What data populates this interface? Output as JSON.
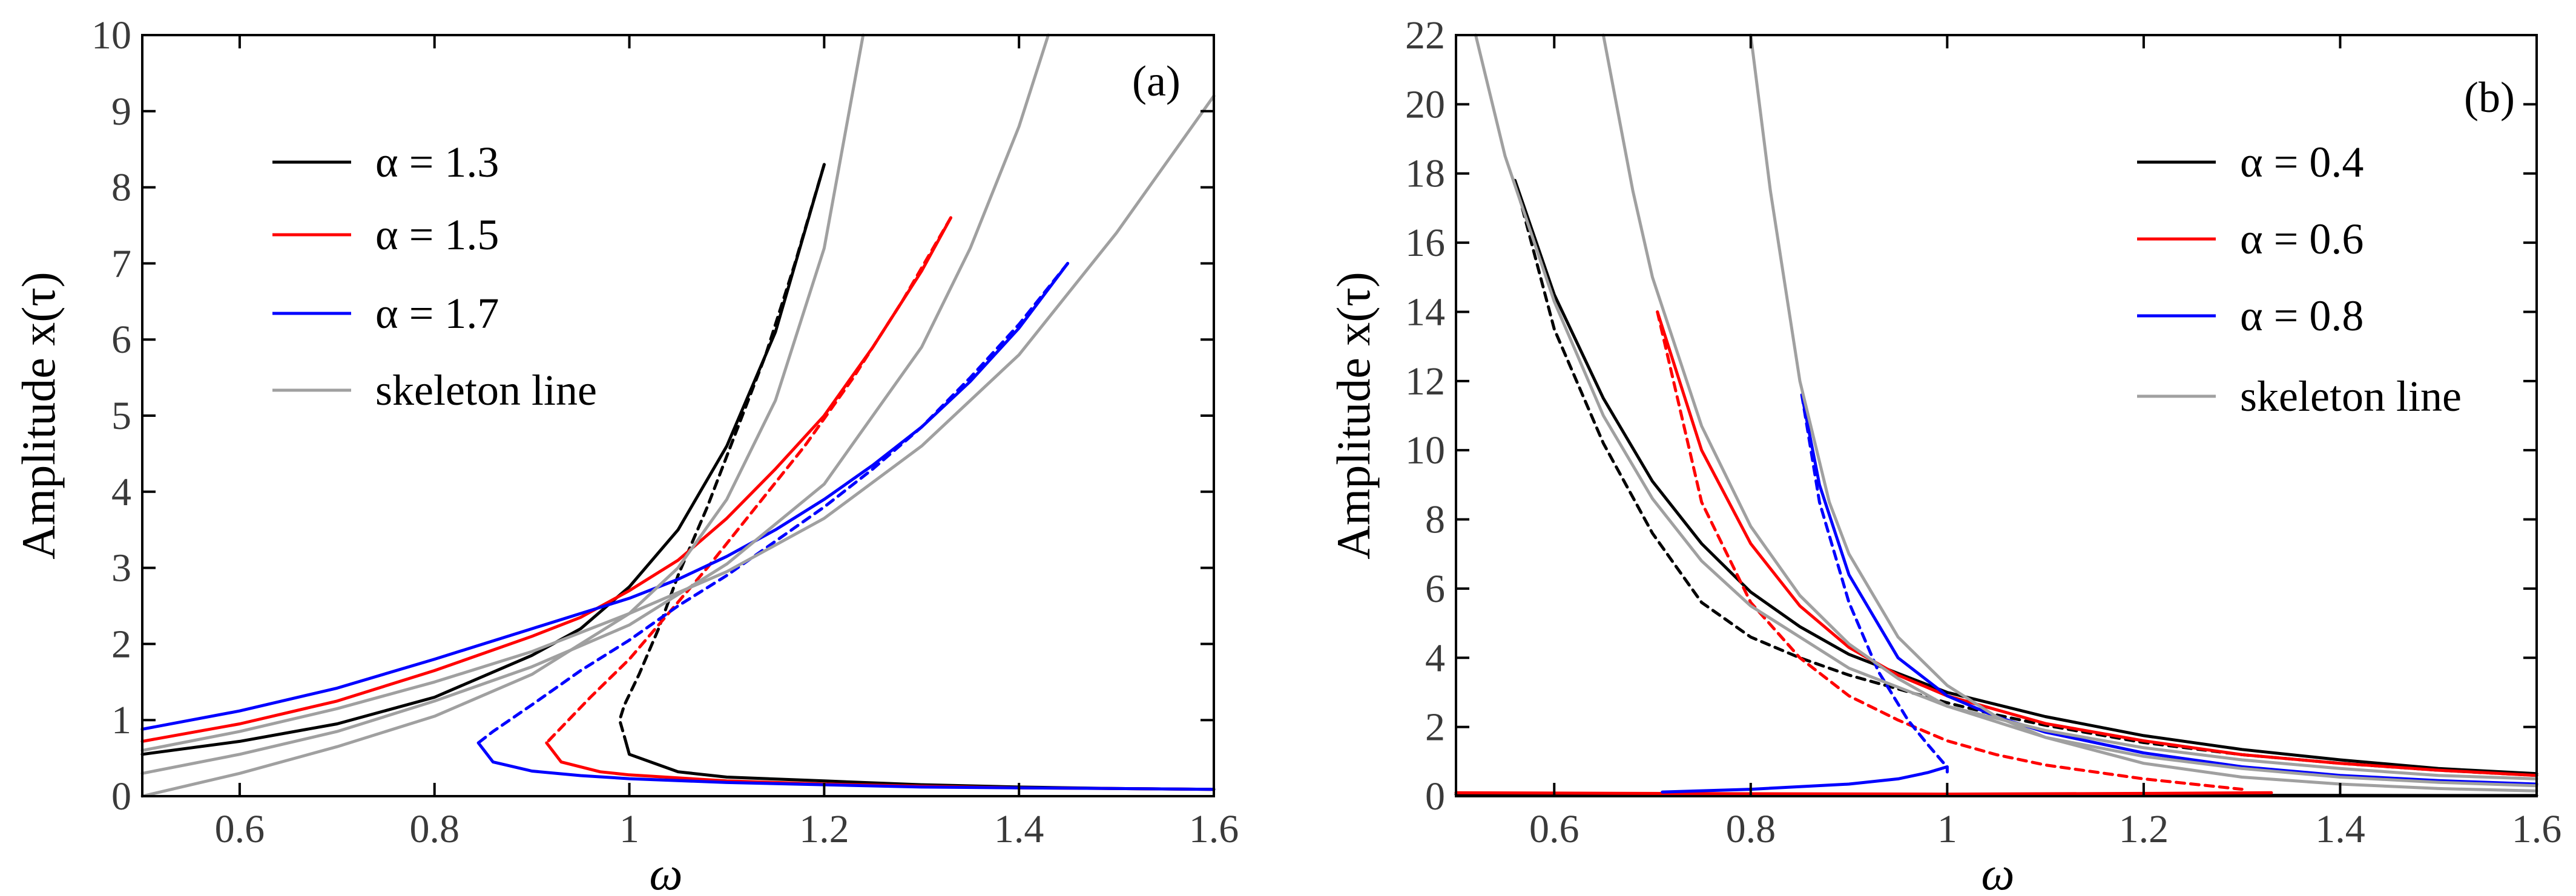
{
  "chart_data": [
    {
      "type": "line",
      "panel": "(a)",
      "xlabel": "ω",
      "ylabel": "Amplitude x(τ)",
      "xlim": [
        0.5,
        1.6
      ],
      "ylim": [
        0,
        10
      ],
      "xticks": [
        "0.6",
        "0.8",
        "1",
        "1.2",
        "1.4",
        "1.6"
      ],
      "yticks": [
        "0",
        "1",
        "2",
        "3",
        "4",
        "5",
        "6",
        "7",
        "8",
        "9",
        "10"
      ],
      "legend": [
        {
          "label": "α = 1.3",
          "color": "#000000"
        },
        {
          "label": "α = 1.5",
          "color": "#ff0000"
        },
        {
          "label": "α = 1.7",
          "color": "#0000ff"
        },
        {
          "label": "skeleton line",
          "color": "#a0a0a0"
        }
      ],
      "series": [
        {
          "name": "α = 1.3 stable upper",
          "color": "#000000",
          "style": "solid",
          "x": [
            0.5,
            0.6,
            0.7,
            0.8,
            0.9,
            0.95,
            1.0,
            1.05,
            1.1,
            1.15,
            1.2
          ],
          "y": [
            0.55,
            0.72,
            0.95,
            1.3,
            1.85,
            2.2,
            2.75,
            3.5,
            4.6,
            6.1,
            8.3
          ]
        },
        {
          "name": "α = 1.3 unstable",
          "color": "#000000",
          "style": "dashed",
          "x": [
            1.2,
            1.17,
            1.14,
            1.11,
            1.08,
            1.05,
            1.03,
            1.01,
            0.995,
            0.99,
            0.995
          ],
          "y": [
            8.3,
            7.0,
            5.8,
            4.8,
            3.8,
            2.9,
            2.2,
            1.6,
            1.2,
            1.0,
            0.78
          ]
        },
        {
          "name": "α = 1.3 stable lower",
          "color": "#000000",
          "style": "solid",
          "x": [
            0.995,
            1.0,
            1.05,
            1.1,
            1.2,
            1.3,
            1.4,
            1.5,
            1.6
          ],
          "y": [
            0.78,
            0.55,
            0.32,
            0.25,
            0.2,
            0.15,
            0.12,
            0.1,
            0.09
          ]
        },
        {
          "name": "α = 1.5 stable upper",
          "color": "#ff0000",
          "style": "solid",
          "x": [
            0.5,
            0.6,
            0.7,
            0.8,
            0.9,
            0.95,
            1.0,
            1.05,
            1.1,
            1.15,
            1.2,
            1.25,
            1.3,
            1.33
          ],
          "y": [
            0.72,
            0.95,
            1.25,
            1.65,
            2.1,
            2.35,
            2.7,
            3.1,
            3.65,
            4.3,
            5.0,
            5.9,
            6.9,
            7.6
          ]
        },
        {
          "name": "α = 1.5 unstable",
          "color": "#ff0000",
          "style": "dashed",
          "x": [
            1.33,
            1.28,
            1.23,
            1.18,
            1.13,
            1.08,
            1.04,
            1.0,
            0.96,
            0.93,
            0.915
          ],
          "y": [
            7.6,
            6.5,
            5.5,
            4.6,
            3.8,
            3.0,
            2.4,
            1.8,
            1.3,
            0.9,
            0.7
          ]
        },
        {
          "name": "α = 1.5 stable lower",
          "color": "#ff0000",
          "style": "solid",
          "x": [
            0.915,
            0.93,
            0.97,
            1.0,
            1.1,
            1.2,
            1.3,
            1.4,
            1.5,
            1.6
          ],
          "y": [
            0.7,
            0.45,
            0.32,
            0.28,
            0.2,
            0.16,
            0.13,
            0.11,
            0.1,
            0.09
          ]
        },
        {
          "name": "α = 1.7 stable upper",
          "color": "#0000ff",
          "style": "solid",
          "x": [
            0.5,
            0.6,
            0.7,
            0.8,
            0.9,
            1.0,
            1.05,
            1.1,
            1.15,
            1.2,
            1.25,
            1.3,
            1.35,
            1.4,
            1.45
          ],
          "y": [
            0.88,
            1.12,
            1.42,
            1.8,
            2.2,
            2.6,
            2.85,
            3.15,
            3.5,
            3.9,
            4.35,
            4.85,
            5.45,
            6.15,
            7.0
          ]
        },
        {
          "name": "α = 1.7 unstable",
          "color": "#0000ff",
          "style": "dashed",
          "x": [
            1.45,
            1.4,
            1.35,
            1.3,
            1.25,
            1.2,
            1.15,
            1.1,
            1.05,
            1.0,
            0.95,
            0.9,
            0.86,
            0.845
          ],
          "y": [
            7.0,
            6.2,
            5.5,
            4.85,
            4.3,
            3.8,
            3.35,
            2.9,
            2.5,
            2.05,
            1.65,
            1.2,
            0.85,
            0.7
          ]
        },
        {
          "name": "α = 1.7 stable lower",
          "color": "#0000ff",
          "style": "solid",
          "x": [
            0.845,
            0.86,
            0.9,
            0.95,
            1.0,
            1.1,
            1.2,
            1.3,
            1.4,
            1.5,
            1.6
          ],
          "y": [
            0.7,
            0.45,
            0.33,
            0.27,
            0.23,
            0.18,
            0.15,
            0.12,
            0.11,
            0.1,
            0.09
          ]
        },
        {
          "name": "skeleton α = 1.3",
          "color": "#a0a0a0",
          "style": "solid",
          "x": [
            0.5,
            0.6,
            0.7,
            0.8,
            0.9,
            1.0,
            1.05,
            1.1,
            1.15,
            1.2,
            1.24
          ],
          "y": [
            0.0,
            0.3,
            0.65,
            1.05,
            1.6,
            2.4,
            3.0,
            3.9,
            5.2,
            7.2,
            10.0
          ]
        },
        {
          "name": "skeleton α = 1.5",
          "color": "#a0a0a0",
          "style": "solid",
          "x": [
            0.5,
            0.6,
            0.7,
            0.8,
            0.9,
            1.0,
            1.1,
            1.2,
            1.3,
            1.35,
            1.4,
            1.43
          ],
          "y": [
            0.3,
            0.55,
            0.85,
            1.25,
            1.7,
            2.25,
            3.05,
            4.1,
            5.9,
            7.2,
            8.8,
            10.0
          ]
        },
        {
          "name": "skeleton α = 1.7",
          "color": "#a0a0a0",
          "style": "solid",
          "x": [
            0.5,
            0.6,
            0.7,
            0.8,
            0.9,
            1.0,
            1.1,
            1.2,
            1.3,
            1.4,
            1.5,
            1.6
          ],
          "y": [
            0.6,
            0.85,
            1.15,
            1.5,
            1.9,
            2.4,
            2.95,
            3.65,
            4.6,
            5.8,
            7.4,
            9.2
          ]
        }
      ]
    },
    {
      "type": "line",
      "panel": "(b)",
      "xlabel": "ω",
      "ylabel": "Amplitude x(τ)",
      "xlim": [
        0.5,
        1.6
      ],
      "ylim": [
        0,
        22
      ],
      "xticks": [
        "0.6",
        "0.8",
        "1",
        "1.2",
        "1.4",
        "1.6"
      ],
      "yticks": [
        "0",
        "2",
        "4",
        "6",
        "8",
        "10",
        "12",
        "14",
        "16",
        "18",
        "20",
        "22"
      ],
      "legend": [
        {
          "label": "α = 0.4",
          "color": "#000000"
        },
        {
          "label": "α = 0.6",
          "color": "#ff0000"
        },
        {
          "label": "α = 0.8",
          "color": "#0000ff"
        },
        {
          "label": "skeleton line",
          "color": "#a0a0a0"
        }
      ],
      "series": [
        {
          "name": "α = 0.4 stable",
          "color": "#000000",
          "style": "solid",
          "x": [
            0.56,
            0.6,
            0.65,
            0.7,
            0.75,
            0.8,
            0.85,
            0.9,
            1.0,
            1.1,
            1.2,
            1.3,
            1.4,
            1.5,
            1.6
          ],
          "y": [
            17.8,
            14.5,
            11.5,
            9.1,
            7.3,
            5.9,
            4.9,
            4.1,
            3.0,
            2.3,
            1.75,
            1.35,
            1.05,
            0.8,
            0.65
          ]
        },
        {
          "name": "α = 0.4 unstable",
          "color": "#000000",
          "style": "dashed",
          "x": [
            0.56,
            0.6,
            0.65,
            0.7,
            0.75,
            0.8,
            0.85,
            0.9,
            0.95,
            1.0,
            1.05,
            1.1,
            1.2,
            1.3,
            1.4,
            1.5,
            1.6
          ],
          "y": [
            17.8,
            13.5,
            10.2,
            7.6,
            5.6,
            4.6,
            4.0,
            3.5,
            3.1,
            2.7,
            2.35,
            2.05,
            1.55,
            1.2,
            0.95,
            0.75,
            0.6
          ]
        },
        {
          "name": "α = 0.4 lower",
          "color": "#000000",
          "style": "solid",
          "x": [
            0.5,
            1.0,
            1.6
          ],
          "y": [
            0.05,
            0.03,
            0.02
          ]
        },
        {
          "name": "α = 0.6 stable",
          "color": "#ff0000",
          "style": "solid",
          "x": [
            0.705,
            0.75,
            0.8,
            0.85,
            0.9,
            0.95,
            1.0,
            1.1,
            1.2,
            1.3,
            1.4,
            1.5,
            1.6
          ],
          "y": [
            14.0,
            10.0,
            7.3,
            5.5,
            4.3,
            3.5,
            2.9,
            2.1,
            1.6,
            1.2,
            0.95,
            0.75,
            0.6
          ]
        },
        {
          "name": "α = 0.6 unstable",
          "color": "#ff0000",
          "style": "dashed",
          "x": [
            0.705,
            0.75,
            0.8,
            0.85,
            0.9,
            0.95,
            1.0,
            1.05,
            1.1,
            1.2,
            1.3
          ],
          "y": [
            14.0,
            8.5,
            5.6,
            4.0,
            2.9,
            2.2,
            1.6,
            1.2,
            0.9,
            0.5,
            0.2
          ]
        },
        {
          "name": "α = 0.6 lower",
          "color": "#ff0000",
          "style": "solid",
          "x": [
            0.5,
            0.8,
            1.0,
            1.2,
            1.33
          ],
          "y": [
            0.1,
            0.07,
            0.06,
            0.08,
            0.1
          ]
        },
        {
          "name": "α = 0.8 stable",
          "color": "#0000ff",
          "style": "solid",
          "x": [
            0.852,
            0.87,
            0.9,
            0.95,
            1.0,
            1.05,
            1.1,
            1.2,
            1.3,
            1.4,
            1.5,
            1.6
          ],
          "y": [
            11.6,
            9.0,
            6.4,
            4.0,
            2.9,
            2.3,
            1.85,
            1.25,
            0.85,
            0.6,
            0.45,
            0.35
          ]
        },
        {
          "name": "α = 0.8 unstable",
          "color": "#0000ff",
          "style": "dashed",
          "x": [
            0.852,
            0.87,
            0.9,
            0.93,
            0.96,
            0.98,
            0.995,
            1.0
          ],
          "y": [
            11.6,
            8.5,
            5.6,
            3.6,
            2.2,
            1.5,
            1.0,
            0.85
          ]
        },
        {
          "name": "α = 0.8 lower",
          "color": "#0000ff",
          "style": "solid",
          "x": [
            0.71,
            0.8,
            0.9,
            0.95,
            0.98,
            1.0,
            1.0
          ],
          "y": [
            0.12,
            0.2,
            0.35,
            0.5,
            0.68,
            0.85,
            0.7
          ]
        },
        {
          "name": "skeleton α = 0.4",
          "color": "#a0a0a0",
          "style": "solid",
          "x": [
            0.52,
            0.55,
            0.6,
            0.65,
            0.7,
            0.75,
            0.8,
            0.9,
            1.0,
            1.1,
            1.2,
            1.3,
            1.4,
            1.5,
            1.6
          ],
          "y": [
            22.0,
            18.5,
            14.3,
            11.0,
            8.6,
            6.8,
            5.5,
            3.7,
            2.6,
            1.9,
            1.4,
            1.05,
            0.8,
            0.6,
            0.5
          ]
        },
        {
          "name": "skeleton α = 0.6",
          "color": "#a0a0a0",
          "style": "solid",
          "x": [
            0.65,
            0.68,
            0.7,
            0.75,
            0.8,
            0.85,
            0.9,
            0.95,
            1.0,
            1.1,
            1.2,
            1.3,
            1.4,
            1.5,
            1.6
          ],
          "y": [
            22.0,
            17.5,
            15.0,
            10.7,
            7.8,
            5.8,
            4.4,
            3.4,
            2.6,
            1.7,
            1.15,
            0.8,
            0.55,
            0.4,
            0.3
          ]
        },
        {
          "name": "skeleton α = 0.8",
          "color": "#a0a0a0",
          "style": "solid",
          "x": [
            0.8,
            0.82,
            0.85,
            0.88,
            0.9,
            0.95,
            1.0,
            1.05,
            1.1,
            1.2,
            1.3,
            1.4,
            1.5,
            1.6
          ],
          "y": [
            22.0,
            17.5,
            12.0,
            8.5,
            7.0,
            4.6,
            3.2,
            2.3,
            1.7,
            0.95,
            0.55,
            0.35,
            0.22,
            0.15
          ]
        }
      ]
    }
  ]
}
